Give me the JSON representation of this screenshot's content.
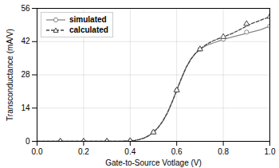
{
  "chart_data": {
    "type": "line",
    "xlabel": "Gate-to-Source Votlage (V)",
    "ylabel": "Transconductance (mA/V)",
    "xlim": [
      0,
      1.0
    ],
    "ylim": [
      0,
      56
    ],
    "xticks": [
      {
        "value": 0,
        "label": "0.0"
      },
      0.2,
      0.4,
      0.6,
      0.8,
      {
        "value": 1.0,
        "label": "1.0"
      }
    ],
    "yticks": [
      0,
      14,
      28,
      42,
      56
    ],
    "grid": true,
    "legend": "upper left",
    "series": [
      {
        "name": "simulated",
        "color": "#888888",
        "line_style": "solid",
        "marker": "circle",
        "x": [
          0.0,
          0.05,
          0.1,
          0.15,
          0.2,
          0.25,
          0.3,
          0.35,
          0.38,
          0.4,
          0.42,
          0.44,
          0.46,
          0.48,
          0.5,
          0.52,
          0.54,
          0.56,
          0.58,
          0.6,
          0.62,
          0.64,
          0.66,
          0.68,
          0.7,
          0.73,
          0.76,
          0.8,
          0.84,
          0.88,
          0.92,
          0.96,
          1.0
        ],
        "values": [
          0.0,
          0.0,
          0.0,
          0.0,
          0.0,
          0.0,
          0.0,
          0.05,
          0.1,
          0.2,
          0.4,
          0.8,
          1.4,
          2.4,
          3.8,
          5.8,
          8.5,
          12.0,
          16.5,
          21.5,
          26.5,
          31.0,
          34.5,
          37.0,
          38.8,
          40.5,
          41.5,
          43.0,
          44.0,
          45.0,
          46.0,
          47.0,
          48.5
        ],
        "marker_x": [
          0.1,
          0.2,
          0.3,
          0.4,
          0.5,
          0.6,
          0.7,
          0.8,
          0.9,
          1.0
        ],
        "marker_values": [
          0.0,
          0.0,
          0.0,
          0.2,
          3.8,
          21.5,
          38.8,
          43.0,
          46.0,
          48.5
        ]
      },
      {
        "name": "calculated",
        "color": "#444444",
        "line_style": "dashed",
        "marker": "triangle",
        "x": [
          0.0,
          0.05,
          0.1,
          0.15,
          0.2,
          0.25,
          0.3,
          0.35,
          0.38,
          0.4,
          0.42,
          0.44,
          0.46,
          0.48,
          0.5,
          0.52,
          0.54,
          0.56,
          0.58,
          0.6,
          0.62,
          0.64,
          0.66,
          0.68,
          0.7,
          0.73,
          0.76,
          0.8,
          0.84,
          0.88,
          0.92,
          0.96,
          1.0
        ],
        "values": [
          0.0,
          0.0,
          0.0,
          0.0,
          0.0,
          0.0,
          0.0,
          0.05,
          0.1,
          0.2,
          0.4,
          0.8,
          1.4,
          2.4,
          3.8,
          5.8,
          8.5,
          12.0,
          16.5,
          21.5,
          26.5,
          31.0,
          34.5,
          37.0,
          38.8,
          41.0,
          42.5,
          44.0,
          45.5,
          47.5,
          49.5,
          51.0,
          52.5
        ],
        "marker_x": [
          0.1,
          0.2,
          0.3,
          0.4,
          0.5,
          0.6,
          0.7,
          0.8,
          0.9,
          1.0
        ],
        "marker_values": [
          0.0,
          0.0,
          0.0,
          0.2,
          3.8,
          21.5,
          38.8,
          44.0,
          49.5,
          52.5
        ]
      }
    ]
  }
}
